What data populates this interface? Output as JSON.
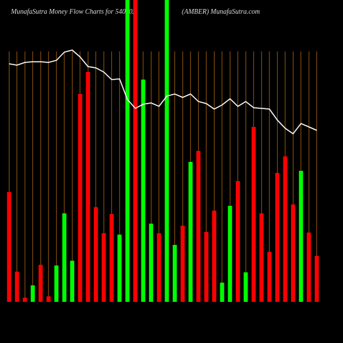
{
  "chart_data": {
    "type": "bar",
    "title": "MunafaSutra  Money Flow  Charts for 540902",
    "subtitle": "(AMBER) MunafaSutra.com",
    "categories": [
      null,
      null,
      null,
      null,
      null,
      null,
      null,
      null,
      null,
      null,
      null,
      null,
      null,
      null,
      null,
      null,
      null,
      null,
      null,
      null,
      null,
      null,
      null,
      null,
      null,
      null,
      null,
      null,
      null,
      null,
      null,
      null,
      null,
      null,
      null,
      null,
      null,
      null,
      null,
      null
    ],
    "ylim": [
      0,
      440
    ],
    "grid_color": "#b86a10",
    "series": [
      {
        "type": "bar",
        "values": [
          160,
          44,
          6,
          24,
          54,
          8,
          53,
          129,
          60,
          303,
          335,
          138,
          100,
          128,
          98,
          440,
          440,
          324,
          114,
          100,
          440,
          83,
          111,
          204,
          220,
          102,
          133,
          28,
          140,
          176,
          43,
          255,
          129,
          73,
          188,
          212,
          142,
          191,
          101,
          67
        ],
        "colors": [
          "#ff0000",
          "#ff0000",
          "#ff0000",
          "#00ff00",
          "#ff0000",
          "#ff0000",
          "#00ff00",
          "#00ff00",
          "#00ff00",
          "#ff0000",
          "#ff0000",
          "#ff0000",
          "#ff0000",
          "#ff0000",
          "#00ff00",
          "#00ff00",
          "#ff0000",
          "#00ff00",
          "#00ff00",
          "#ff0000",
          "#00ff00",
          "#00ff00",
          "#ff0000",
          "#00ff00",
          "#ff0000",
          "#ff0000",
          "#ff0000",
          "#00ff00",
          "#00ff00",
          "#ff0000",
          "#00ff00",
          "#ff0000",
          "#ff0000",
          "#ff0000",
          "#ff0000",
          "#ff0000",
          "#ff0000",
          "#00ff00",
          "#ff0000",
          "#ff0000"
        ]
      },
      {
        "type": "line",
        "color": "#ffffff",
        "values": [
          347,
          345,
          349,
          350,
          350,
          349,
          352,
          364,
          367,
          357,
          343,
          341,
          335,
          324,
          325,
          295,
          282,
          288,
          290,
          285,
          300,
          303,
          298,
          303,
          292,
          289,
          281,
          287,
          296,
          285,
          292,
          283,
          282,
          281,
          265,
          253,
          245,
          260,
          255,
          250
        ]
      }
    ]
  }
}
